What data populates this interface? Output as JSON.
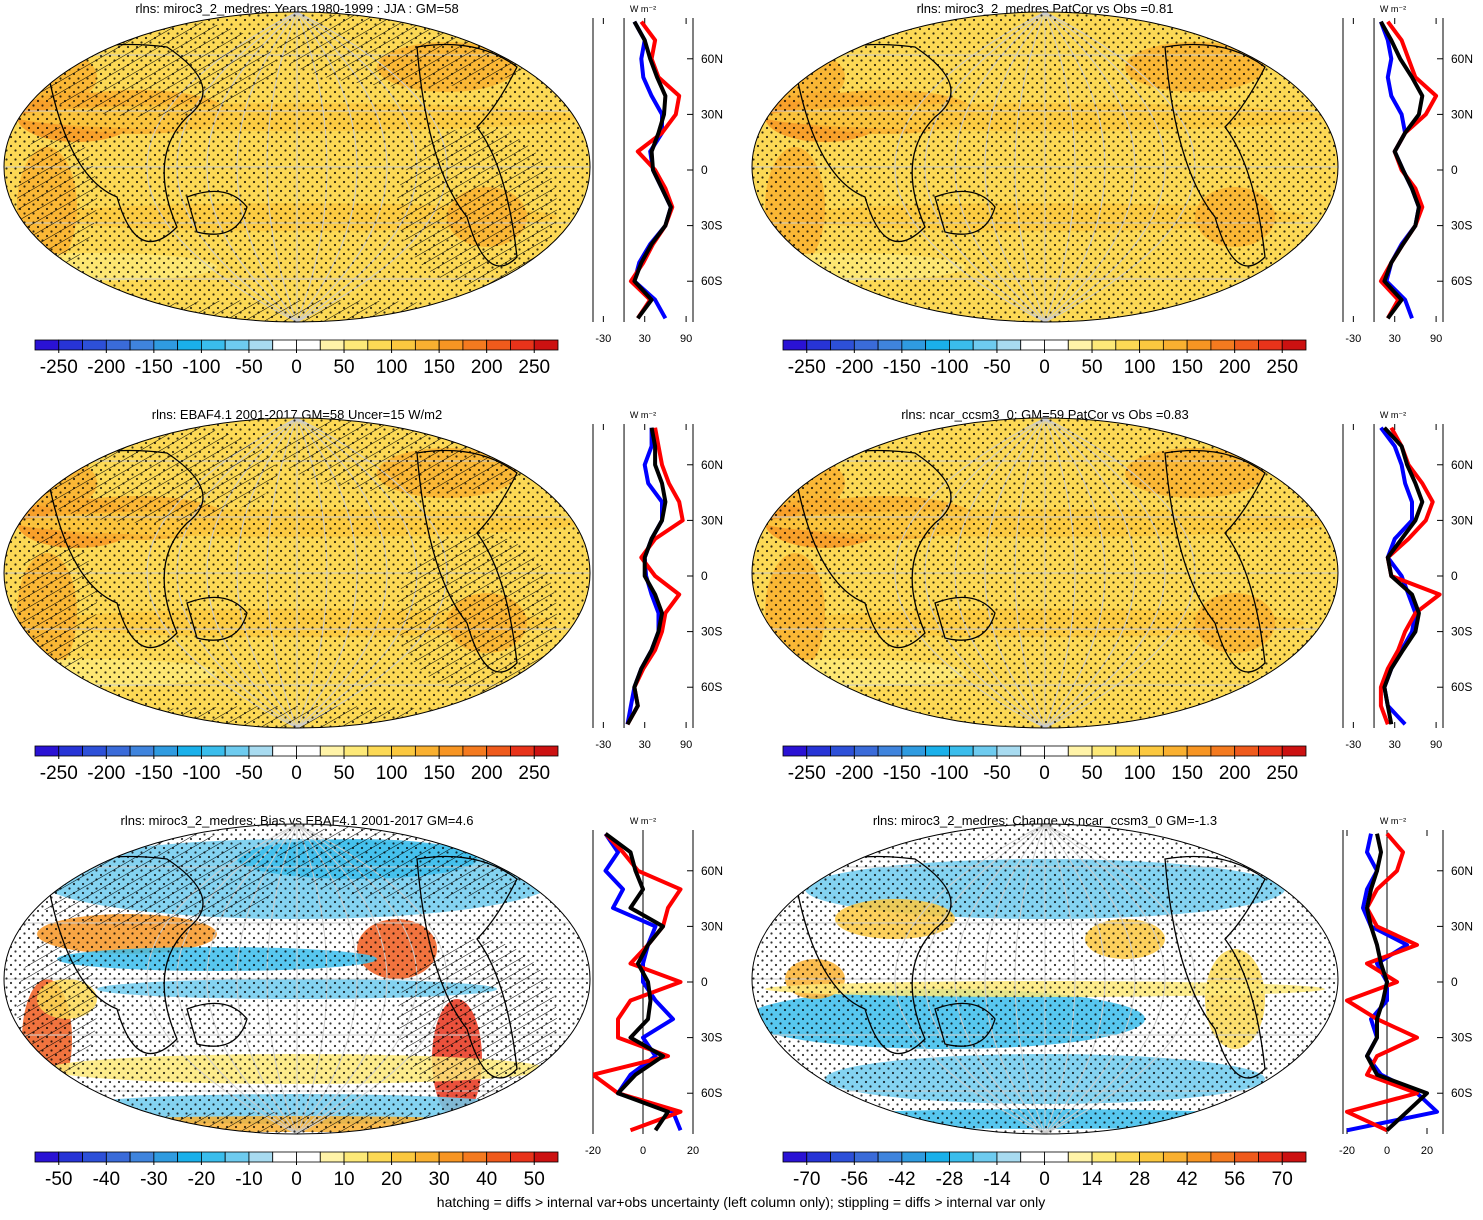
{
  "chart_data": [
    {
      "type": "map",
      "title": "rlns: miroc3_2_medres: Years 1980-1999 : JJA : GM=58",
      "hatching": true,
      "stippling": true,
      "colorbar": {
        "lim": [
          -275,
          275
        ],
        "ticks": [
          -250,
          -200,
          -150,
          -100,
          -50,
          0,
          50,
          100,
          150,
          200,
          250
        ],
        "colors": [
          "#2a12d4",
          "#2734d6",
          "#2d50d8",
          "#3a6bd9",
          "#3f84dd",
          "#2f9be0",
          "#1ab0ea",
          "#3abdec",
          "#6ecbef",
          "#a8dbf0",
          "#ffffff",
          "#ffffff",
          "#fff3a8",
          "#fde978",
          "#fcd955",
          "#fbc83f",
          "#f9b030",
          "#f79523",
          "#f47a1f",
          "#ef5a1c",
          "#e8331a",
          "#cc1111"
        ]
      }
    },
    {
      "type": "line",
      "xlabel": "W m⁻²",
      "xlim": [
        -45,
        100
      ],
      "xticks": [
        -30,
        30,
        90
      ],
      "ylim": [
        -82,
        82
      ],
      "yticks": [
        {
          "value": 60,
          "label": "60N"
        },
        {
          "value": 30,
          "label": "30N"
        },
        0,
        {
          "value": -30,
          "label": "30S"
        },
        {
          "value": -60,
          "label": "60S"
        }
      ],
      "y": [
        80,
        70,
        60,
        50,
        40,
        30,
        20,
        10,
        0,
        -10,
        -20,
        -30,
        -40,
        -50,
        -60,
        -70,
        -80
      ],
      "series": [
        {
          "color": "#0000ff",
          "values": [
            15,
            30,
            25,
            28,
            40,
            55,
            55,
            38,
            42,
            55,
            68,
            60,
            38,
            22,
            15,
            45,
            60
          ]
        },
        {
          "color": "#ff0000",
          "values": [
            25,
            45,
            40,
            50,
            80,
            75,
            55,
            20,
            45,
            60,
            70,
            60,
            42,
            28,
            10,
            38,
            20
          ]
        },
        {
          "color": "#000000",
          "values": [
            15,
            30,
            38,
            48,
            60,
            58,
            50,
            40,
            42,
            55,
            68,
            60,
            40,
            25,
            15,
            40,
            20
          ]
        }
      ]
    },
    {
      "type": "map",
      "title": "rlns: miroc3_2_medres PatCor vs Obs =0.81",
      "hatching": false,
      "stippling": true,
      "colorbar": {
        "lim": [
          -275,
          275
        ],
        "ticks": [
          -250,
          -200,
          -150,
          -100,
          -50,
          0,
          50,
          100,
          150,
          200,
          250
        ],
        "colors": [
          "#2a12d4",
          "#2734d6",
          "#2d50d8",
          "#3a6bd9",
          "#3f84dd",
          "#2f9be0",
          "#1ab0ea",
          "#3abdec",
          "#6ecbef",
          "#a8dbf0",
          "#ffffff",
          "#ffffff",
          "#fff3a8",
          "#fde978",
          "#fcd955",
          "#fbc83f",
          "#f9b030",
          "#f79523",
          "#f47a1f",
          "#ef5a1c",
          "#e8331a",
          "#cc1111"
        ]
      }
    },
    {
      "type": "line",
      "xlabel": "W m⁻²",
      "xlim": [
        -45,
        100
      ],
      "xticks": [
        -30,
        30,
        90
      ],
      "ylim": [
        -82,
        82
      ],
      "yticks": [
        {
          "value": 60,
          "label": "60N"
        },
        {
          "value": 30,
          "label": "30N"
        },
        0,
        {
          "value": -30,
          "label": "30S"
        },
        {
          "value": -60,
          "label": "60S"
        }
      ],
      "y": [
        80,
        70,
        60,
        50,
        40,
        30,
        20,
        10,
        0,
        -10,
        -20,
        -30,
        -40,
        -50,
        -60,
        -70,
        -80
      ],
      "series": [
        {
          "color": "#0000ff",
          "values": [
            10,
            20,
            25,
            20,
            25,
            40,
            45,
            30,
            42,
            55,
            65,
            60,
            40,
            25,
            18,
            45,
            55
          ]
        },
        {
          "color": "#ff0000",
          "values": [
            20,
            40,
            50,
            60,
            90,
            75,
            45,
            30,
            40,
            60,
            70,
            60,
            42,
            25,
            10,
            35,
            20
          ]
        },
        {
          "color": "#000000",
          "values": [
            10,
            25,
            38,
            55,
            70,
            65,
            45,
            30,
            42,
            55,
            65,
            60,
            42,
            25,
            15,
            40,
            20
          ]
        }
      ]
    },
    {
      "type": "map",
      "title": "rlns: EBAF4.1 2001-2017 GM=58 Uncer=15 W/m2",
      "hatching": true,
      "stippling": true,
      "colorbar": {
        "lim": [
          -275,
          275
        ],
        "ticks": [
          -250,
          -200,
          -150,
          -100,
          -50,
          0,
          50,
          100,
          150,
          200,
          250
        ],
        "colors": [
          "#2a12d4",
          "#2734d6",
          "#2d50d8",
          "#3a6bd9",
          "#3f84dd",
          "#2f9be0",
          "#1ab0ea",
          "#3abdec",
          "#6ecbef",
          "#a8dbf0",
          "#ffffff",
          "#ffffff",
          "#fff3a8",
          "#fde978",
          "#fcd955",
          "#fbc83f",
          "#f9b030",
          "#f79523",
          "#f47a1f",
          "#ef5a1c",
          "#e8331a",
          "#cc1111"
        ]
      }
    },
    {
      "type": "line",
      "xlabel": "W m⁻²",
      "xlim": [
        -45,
        100
      ],
      "xticks": [
        -30,
        30,
        90
      ],
      "ylim": [
        -82,
        82
      ],
      "yticks": [
        {
          "value": 60,
          "label": "60N"
        },
        {
          "value": 30,
          "label": "30N"
        },
        0,
        {
          "value": -30,
          "label": "30S"
        },
        {
          "value": -60,
          "label": "60S"
        }
      ],
      "y": [
        80,
        70,
        60,
        50,
        40,
        30,
        20,
        10,
        0,
        -10,
        -20,
        -30,
        -40,
        -50,
        -60,
        -70,
        -80
      ],
      "series": [
        {
          "color": "#0000ff",
          "values": [
            40,
            40,
            30,
            35,
            55,
            55,
            40,
            30,
            32,
            40,
            50,
            50,
            40,
            25,
            15,
            10,
            5
          ]
        },
        {
          "color": "#ff0000",
          "values": [
            45,
            50,
            55,
            65,
            80,
            85,
            45,
            25,
            45,
            80,
            60,
            55,
            45,
            28,
            15,
            20,
            5
          ]
        },
        {
          "color": "#000000",
          "values": [
            40,
            45,
            45,
            55,
            60,
            55,
            40,
            30,
            30,
            45,
            55,
            50,
            40,
            25,
            15,
            20,
            5
          ]
        }
      ]
    },
    {
      "type": "map",
      "title": "rlns: ncar_ccsm3_0: GM=59 PatCor vs Obs =0.83",
      "hatching": false,
      "stippling": true,
      "colorbar": {
        "lim": [
          -275,
          275
        ],
        "ticks": [
          -250,
          -200,
          -150,
          -100,
          -50,
          0,
          50,
          100,
          150,
          200,
          250
        ],
        "colors": [
          "#2a12d4",
          "#2734d6",
          "#2d50d8",
          "#3a6bd9",
          "#3f84dd",
          "#2f9be0",
          "#1ab0ea",
          "#3abdec",
          "#6ecbef",
          "#a8dbf0",
          "#ffffff",
          "#ffffff",
          "#fff3a8",
          "#fde978",
          "#fcd955",
          "#fbc83f",
          "#f9b030",
          "#f79523",
          "#f47a1f",
          "#ef5a1c",
          "#e8331a",
          "#cc1111"
        ]
      }
    },
    {
      "type": "line",
      "xlabel": "W m⁻²",
      "xlim": [
        -45,
        100
      ],
      "xticks": [
        -30,
        30,
        90
      ],
      "ylim": [
        -82,
        82
      ],
      "yticks": [
        {
          "value": 60,
          "label": "60N"
        },
        {
          "value": 30,
          "label": "30N"
        },
        0,
        {
          "value": -30,
          "label": "30S"
        },
        {
          "value": -60,
          "label": "60S"
        }
      ],
      "y": [
        80,
        70,
        60,
        50,
        40,
        30,
        20,
        10,
        0,
        -10,
        -20,
        -30,
        -40,
        -50,
        -60,
        -70,
        -80
      ],
      "series": [
        {
          "color": "#0000ff",
          "values": [
            10,
            30,
            40,
            45,
            55,
            55,
            30,
            20,
            40,
            50,
            60,
            55,
            40,
            25,
            15,
            20,
            45
          ]
        },
        {
          "color": "#ff0000",
          "values": [
            25,
            40,
            50,
            70,
            85,
            75,
            50,
            20,
            25,
            95,
            60,
            45,
            35,
            20,
            10,
            10,
            20
          ]
        },
        {
          "color": "#000000",
          "values": [
            15,
            40,
            48,
            60,
            70,
            60,
            40,
            20,
            25,
            55,
            65,
            60,
            42,
            25,
            15,
            20,
            25
          ]
        }
      ]
    },
    {
      "type": "map",
      "title": "rlns: miroc3_2_medres: Bias vs EBAF4.1 2001-2017 GM=4.6",
      "hatching": true,
      "stippling": true,
      "colorbar": {
        "lim": [
          -55,
          55
        ],
        "ticks": [
          -50,
          -40,
          -30,
          -20,
          -10,
          0,
          10,
          20,
          30,
          40,
          50
        ],
        "colors": [
          "#2a12d4",
          "#2734d6",
          "#2d50d8",
          "#3a6bd9",
          "#3f84dd",
          "#2f9be0",
          "#1ab0ea",
          "#3abdec",
          "#6ecbef",
          "#a8dbf0",
          "#ffffff",
          "#ffffff",
          "#fff3a8",
          "#fde978",
          "#fcd955",
          "#fbc83f",
          "#f9b030",
          "#f79523",
          "#f47a1f",
          "#ef5a1c",
          "#e8331a",
          "#cc1111"
        ]
      }
    },
    {
      "type": "line",
      "xlabel": "W m⁻²",
      "xlim": [
        -20,
        20
      ],
      "xticks": [
        -20,
        0,
        20
      ],
      "ylim": [
        -82,
        82
      ],
      "yticks": [
        {
          "value": 60,
          "label": "60N"
        },
        {
          "value": 30,
          "label": "30N"
        },
        0,
        {
          "value": -30,
          "label": "30S"
        },
        {
          "value": -60,
          "label": "60S"
        }
      ],
      "y": [
        80,
        70,
        60,
        50,
        40,
        30,
        20,
        10,
        0,
        -10,
        -20,
        -30,
        -40,
        -50,
        -60,
        -70,
        -80
      ],
      "series": [
        {
          "color": "#0000ff",
          "values": [
            -15,
            -10,
            -15,
            -8,
            -12,
            5,
            2,
            0,
            0,
            5,
            12,
            0,
            5,
            -5,
            -10,
            12,
            15
          ]
        },
        {
          "color": "#ff0000",
          "values": [
            -15,
            -8,
            -2,
            15,
            10,
            8,
            2,
            -5,
            15,
            -5,
            -10,
            -10,
            10,
            -20,
            -10,
            15,
            -5
          ]
        },
        {
          "color": "#000000",
          "values": [
            -15,
            -5,
            -3,
            0,
            -5,
            8,
            2,
            -2,
            2,
            3,
            2,
            -5,
            8,
            -3,
            -10,
            10,
            5
          ]
        }
      ]
    },
    {
      "type": "map",
      "title": "rlns: miroc3_2_medres: Change vs ncar_ccsm3_0 GM=-1.3",
      "hatching": false,
      "stippling": true,
      "colorbar": {
        "lim": [
          -77,
          77
        ],
        "ticks": [
          -70,
          -56,
          -42,
          -28,
          -14,
          0,
          14,
          28,
          42,
          56,
          70
        ],
        "colors": [
          "#2a12d4",
          "#2734d6",
          "#2d50d8",
          "#3a6bd9",
          "#3f84dd",
          "#2f9be0",
          "#1ab0ea",
          "#3abdec",
          "#6ecbef",
          "#a8dbf0",
          "#ffffff",
          "#ffffff",
          "#fff3a8",
          "#fde978",
          "#fcd955",
          "#fbc83f",
          "#f9b030",
          "#f79523",
          "#f47a1f",
          "#ef5a1c",
          "#e8331a",
          "#cc1111"
        ]
      }
    },
    {
      "type": "line",
      "xlabel": "W m⁻²",
      "xlim": [
        -22,
        28
      ],
      "xticks": [
        -20,
        0,
        20
      ],
      "ylim": [
        -82,
        82
      ],
      "yticks": [
        {
          "value": 60,
          "label": "60N"
        },
        {
          "value": 30,
          "label": "30N"
        },
        0,
        {
          "value": -30,
          "label": "30S"
        },
        {
          "value": -60,
          "label": "60S"
        }
      ],
      "y": [
        80,
        70,
        60,
        50,
        40,
        30,
        20,
        10,
        0,
        -10,
        -20,
        -30,
        -40,
        -50,
        -60,
        -70,
        -80
      ],
      "series": [
        {
          "color": "#0000ff",
          "values": [
            -8,
            -10,
            -5,
            -10,
            -12,
            -8,
            10,
            -5,
            0,
            0,
            -8,
            -5,
            -10,
            -3,
            15,
            25,
            -20
          ]
        },
        {
          "color": "#ff0000",
          "values": [
            0,
            8,
            5,
            -5,
            -10,
            -5,
            15,
            -10,
            5,
            -20,
            -5,
            15,
            -5,
            -10,
            15,
            -20,
            0
          ]
        },
        {
          "color": "#000000",
          "values": [
            -5,
            -3,
            -5,
            -8,
            -10,
            -8,
            -5,
            -3,
            0,
            -2,
            -5,
            -5,
            -10,
            -5,
            20,
            10,
            0
          ]
        }
      ]
    }
  ],
  "footer": "hatching = diffs > internal var+obs uncertainty (left column only); stippling = diffs > internal var only"
}
